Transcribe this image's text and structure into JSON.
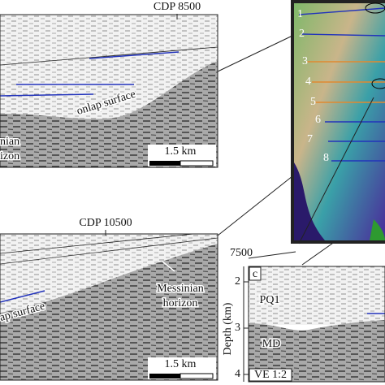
{
  "panel_a": {
    "cdp": "CDP 8500",
    "onlap": "onlap surface",
    "messinian_1": "nian",
    "messinian_2": "izon",
    "scale": "1.5 km"
  },
  "map": {
    "line_numbers": [
      "1",
      "2",
      "3",
      "4",
      "5",
      "6",
      "7",
      "8"
    ]
  },
  "panel_b": {
    "cdp": "CDP 10500",
    "messinian_1": "Messinian",
    "messinian_2": "horizon",
    "onlap": "ap surface",
    "scale": "1.5 km"
  },
  "panel_c": {
    "cdp": "7500",
    "letter": "c",
    "depth_ticks": [
      "2",
      "3",
      "4"
    ],
    "axis_label": "Depth (km)",
    "unit_upper": "PQ1",
    "unit_lower": "MD",
    "ve": "VE 1:2"
  }
}
